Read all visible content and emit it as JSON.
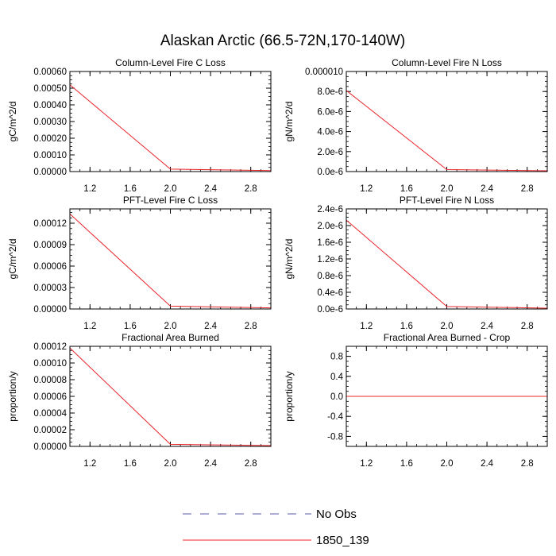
{
  "figure": {
    "title": "Alaskan Arctic (66.5-72N,170-140W)"
  },
  "legend": {
    "placement": "bottom-center",
    "entries": [
      {
        "label": "No Obs",
        "color": "#5a5aa8",
        "style": "dashed"
      },
      {
        "label": "1850_139",
        "color": "#e8242a",
        "style": "solid"
      }
    ]
  },
  "chart_data": [
    {
      "type": "line",
      "title": "Column-Level Fire C Loss",
      "ylabel": "gC/m^2/d",
      "xlim": [
        1,
        3
      ],
      "ylim": [
        0,
        0.0006
      ],
      "xticks": [
        1.2,
        1.6,
        2.0,
        2.4,
        2.8
      ],
      "xtick_labels": [
        "1.2",
        "1.6",
        "2.0",
        "2.4",
        "2.8"
      ],
      "yticks": [
        0,
        0.0001,
        0.0002,
        0.0003,
        0.0004,
        0.0005,
        0.0006
      ],
      "ytick_labels": [
        "0.00000",
        "0.00010",
        "0.00020",
        "0.00030",
        "0.00040",
        "0.00050",
        "0.00060"
      ],
      "series": [
        {
          "name": "1850_139",
          "color": "#e8242a",
          "x": [
            1,
            2,
            3
          ],
          "y": [
            0.00052,
            1.5e-05,
            6e-06
          ]
        }
      ]
    },
    {
      "type": "line",
      "title": "Column-Level Fire N Loss",
      "ylabel": "gN/m^2/d",
      "xlim": [
        1,
        3
      ],
      "ylim": [
        0,
        1e-05
      ],
      "xticks": [
        1.2,
        1.6,
        2.0,
        2.4,
        2.8
      ],
      "xtick_labels": [
        "1.2",
        "1.6",
        "2.0",
        "2.4",
        "2.8"
      ],
      "yticks": [
        0,
        2e-06,
        4e-06,
        6e-06,
        8e-06,
        1e-05
      ],
      "ytick_labels": [
        "0.0e-6",
        "2.0e-6",
        "4.0e-6",
        "6.0e-6",
        "8.0e-6",
        "0.000010"
      ],
      "series": [
        {
          "name": "1850_139",
          "color": "#e8242a",
          "x": [
            1,
            2,
            3
          ],
          "y": [
            8.1e-06,
            2e-07,
            8e-08
          ]
        }
      ]
    },
    {
      "type": "line",
      "title": "PFT-Level Fire C Loss",
      "ylabel": "gC/m^2/d",
      "xlim": [
        1,
        3
      ],
      "ylim": [
        0,
        0.00014
      ],
      "xticks": [
        1.2,
        1.6,
        2.0,
        2.4,
        2.8
      ],
      "xtick_labels": [
        "1.2",
        "1.6",
        "2.0",
        "2.4",
        "2.8"
      ],
      "yticks": [
        0,
        3e-05,
        6e-05,
        9e-05,
        0.00012
      ],
      "ytick_labels": [
        "0.00000",
        "0.00003",
        "0.00006",
        "0.00009",
        "0.00012"
      ],
      "series": [
        {
          "name": "1850_139",
          "color": "#e8242a",
          "x": [
            1,
            2,
            3
          ],
          "y": [
            0.000133,
            4e-06,
            1.5e-06
          ]
        }
      ]
    },
    {
      "type": "line",
      "title": "PFT-Level Fire N Loss",
      "ylabel": "gN/m^2/d",
      "xlim": [
        1,
        3
      ],
      "ylim": [
        0,
        2.4e-06
      ],
      "xticks": [
        1.2,
        1.6,
        2.0,
        2.4,
        2.8
      ],
      "xtick_labels": [
        "1.2",
        "1.6",
        "2.0",
        "2.4",
        "2.8"
      ],
      "yticks": [
        0,
        4e-07,
        8e-07,
        1.2e-06,
        1.6e-06,
        2e-06,
        2.4e-06
      ],
      "ytick_labels": [
        "0.0e-6",
        "0.4e-6",
        "0.8e-6",
        "1.2e-6",
        "1.6e-6",
        "2.0e-6",
        "2.4e-6"
      ],
      "series": [
        {
          "name": "1850_139",
          "color": "#e8242a",
          "x": [
            1,
            2,
            3
          ],
          "y": [
            2.13e-06,
            6e-08,
            2e-08
          ]
        }
      ]
    },
    {
      "type": "line",
      "title": "Fractional Area Burned",
      "ylabel": "proportion/y",
      "xlim": [
        1,
        3
      ],
      "ylim": [
        0,
        0.00012
      ],
      "xticks": [
        1.2,
        1.6,
        2.0,
        2.4,
        2.8
      ],
      "xtick_labels": [
        "1.2",
        "1.6",
        "2.0",
        "2.4",
        "2.8"
      ],
      "yticks": [
        0,
        2e-05,
        4e-05,
        6e-05,
        8e-05,
        0.0001,
        0.00012
      ],
      "ytick_labels": [
        "0.00000",
        "0.00002",
        "0.00004",
        "0.00006",
        "0.00008",
        "0.00010",
        "0.00012"
      ],
      "series": [
        {
          "name": "1850_139",
          "color": "#e8242a",
          "x": [
            1,
            2,
            3
          ],
          "y": [
            0.000118,
            2.5e-06,
            1e-06
          ]
        }
      ]
    },
    {
      "type": "line",
      "title": "Fractional Area Burned - Crop",
      "ylabel": "proportion/y",
      "xlim": [
        1,
        3
      ],
      "ylim": [
        -1,
        1
      ],
      "xticks": [
        1.2,
        1.6,
        2.0,
        2.4,
        2.8
      ],
      "xtick_labels": [
        "1.2",
        "1.6",
        "2.0",
        "2.4",
        "2.8"
      ],
      "yticks": [
        -0.8,
        -0.4,
        0,
        0.4,
        0.8
      ],
      "ytick_labels": [
        "-0.8",
        "-0.4",
        "0.0",
        "0.4",
        "0.8"
      ],
      "series": [
        {
          "name": "1850_139",
          "color": "#e8242a",
          "x": [
            1,
            2,
            3
          ],
          "y": [
            0,
            0,
            0
          ]
        }
      ]
    }
  ]
}
